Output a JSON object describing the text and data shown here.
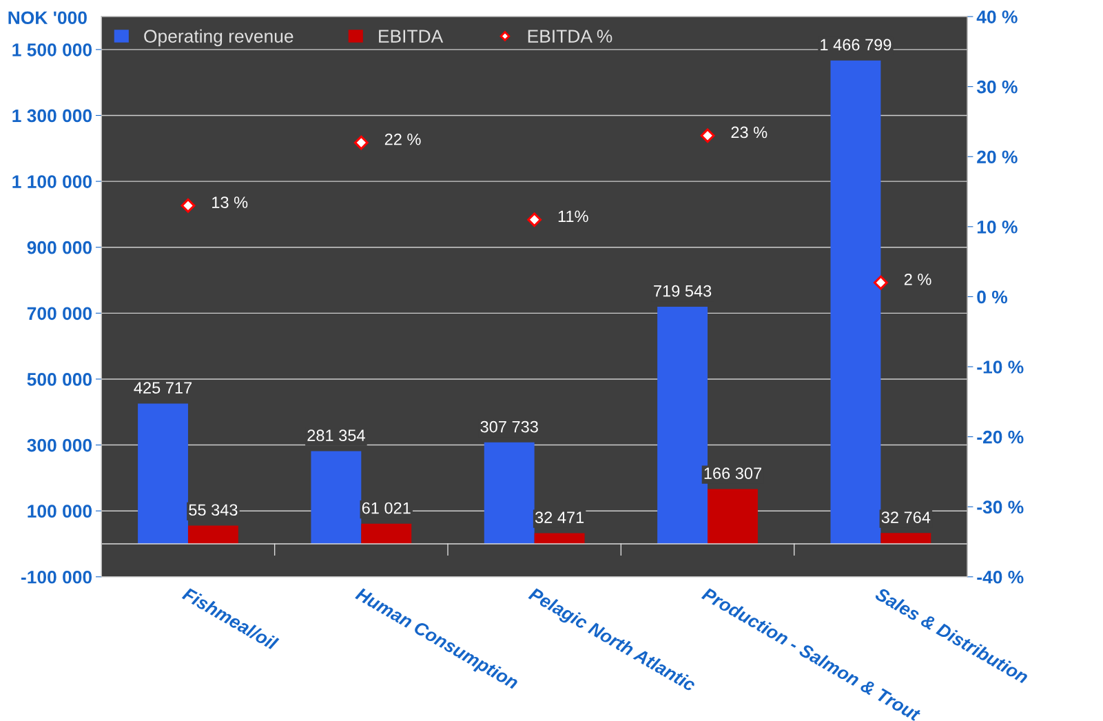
{
  "chart_data": {
    "type": "bar",
    "ylabel": "NOK '000",
    "categories": [
      "Fishmeal/oil",
      "Human Consumption",
      "Pelagic North Atlantic",
      "Production - Salmon & Trout",
      "Sales & Distribution"
    ],
    "series": [
      {
        "name": "Operating revenue",
        "color": "#2f5fec",
        "values": [
          425717,
          281354,
          307733,
          719543,
          1466799
        ],
        "value_labels": [
          "425 717",
          "281 354",
          "307 733",
          "719 543",
          "1 466 799"
        ]
      },
      {
        "name": "EBITDA",
        "color": "#c80000",
        "values": [
          55343,
          61021,
          32471,
          166307,
          32764
        ],
        "value_labels": [
          "55 343",
          "61 021",
          "32 471",
          "166 307",
          "32 764"
        ]
      },
      {
        "name": "EBITDA %",
        "type": "scatter",
        "axis": "y2",
        "color": "#ff0000",
        "marker": "diamond",
        "values": [
          13,
          22,
          11,
          23,
          2
        ],
        "value_labels": [
          "13 %",
          "22 %",
          "11%",
          "23 %",
          "2 %"
        ]
      }
    ],
    "ylim": [
      -100000,
      1600000
    ],
    "yticks": [
      {
        "value": -100000,
        "label": "-100 000"
      },
      {
        "value": 100000,
        "label": "100 000"
      },
      {
        "value": 300000,
        "label": "300 000"
      },
      {
        "value": 500000,
        "label": "500 000"
      },
      {
        "value": 700000,
        "label": "700 000"
      },
      {
        "value": 900000,
        "label": "900 000"
      },
      {
        "value": 1100000,
        "label": "1 100 000"
      },
      {
        "value": 1300000,
        "label": "1 300 000"
      },
      {
        "value": 1500000,
        "label": "1 500 000"
      }
    ],
    "y2lim": [
      -40,
      40
    ],
    "y2ticks": [
      {
        "value": -40,
        "label": "-40 %"
      },
      {
        "value": -30,
        "label": "-30 %"
      },
      {
        "value": -20,
        "label": "-20 %"
      },
      {
        "value": -10,
        "label": "-10 %"
      },
      {
        "value": 0,
        "label": "0 %"
      },
      {
        "value": 10,
        "label": "10 %"
      },
      {
        "value": 20,
        "label": "20 %"
      },
      {
        "value": 30,
        "label": "30 %"
      },
      {
        "value": 40,
        "label": "40 %"
      }
    ],
    "grid": "y",
    "legend": "top left"
  }
}
